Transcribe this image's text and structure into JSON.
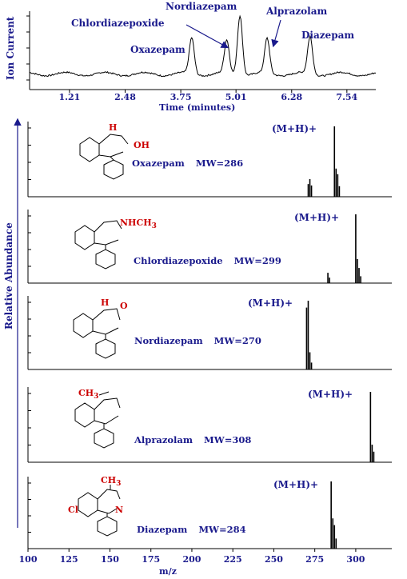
{
  "chart_data": [
    {
      "type": "line",
      "ylabel": "Ion Current",
      "xlabel": "Time (minutes)",
      "x_ticks": [
        "1.21",
        "2.48",
        "3.75",
        "5.01",
        "6.28",
        "7.54"
      ],
      "xlim": [
        0.3,
        8.2
      ],
      "peaks": [
        {
          "label": "Oxazepam",
          "time": 4.0,
          "height": 0.6
        },
        {
          "label": "Chlordiazepoxide",
          "time": 4.8,
          "height": 0.55
        },
        {
          "label": "Nordiazepam",
          "time": 5.1,
          "height": 1.0
        },
        {
          "label": "Alprazolam",
          "time": 5.72,
          "height": 0.58
        },
        {
          "label": "Diazepam",
          "time": 6.7,
          "height": 0.62
        }
      ]
    },
    {
      "type": "bar",
      "ylabel": "Relative Abundance",
      "xlabel": "m/z",
      "xlim": [
        100,
        322
      ],
      "x_ticks": [
        "100",
        "125",
        "150",
        "175",
        "200",
        "225",
        "250",
        "275",
        "300"
      ],
      "ion_label": "(M+H)+",
      "panels": [
        {
          "compound": "Oxazepam",
          "mw_text": "MW=286",
          "substituent": "OH",
          "h": "H",
          "peaks": [
            [
              271,
              0.18
            ],
            [
              272,
              0.25
            ],
            [
              273,
              0.16
            ],
            [
              287,
              1.0
            ],
            [
              288,
              0.4
            ],
            [
              289,
              0.32
            ],
            [
              290,
              0.15
            ]
          ]
        },
        {
          "compound": "Chlordiazepoxide",
          "mw_text": "MW=299",
          "substituent": "NHCH3",
          "sub_prefix": "NHCH",
          "sub_index": "3",
          "peaks": [
            [
              283,
              0.15
            ],
            [
              284,
              0.08
            ],
            [
              300,
              1.0
            ],
            [
              301,
              0.35
            ],
            [
              302,
              0.22
            ],
            [
              303,
              0.1
            ]
          ]
        },
        {
          "compound": "Nordiazepam",
          "mw_text": "MW=270",
          "h": "H",
          "o": "O",
          "peaks": [
            [
              270,
              0.9
            ],
            [
              271,
              1.0
            ],
            [
              272,
              0.25
            ],
            [
              273,
              0.1
            ]
          ]
        },
        {
          "compound": "Alprazolam",
          "mw_text": "MW=308",
          "substituent": "CH3",
          "sub_prefix": "CH",
          "sub_index": "3",
          "peaks": [
            [
              309,
              1.0
            ],
            [
              310,
              0.25
            ],
            [
              311,
              0.15
            ]
          ]
        },
        {
          "compound": "Diazepam",
          "mw_text": "MW=284",
          "substituent": "CH3",
          "sub_prefix": "CH",
          "sub_index": "3",
          "cl": "Cl",
          "n": "N",
          "peaks": [
            [
              285,
              1.0
            ],
            [
              286,
              0.45
            ],
            [
              287,
              0.35
            ],
            [
              288,
              0.15
            ]
          ]
        }
      ]
    }
  ]
}
